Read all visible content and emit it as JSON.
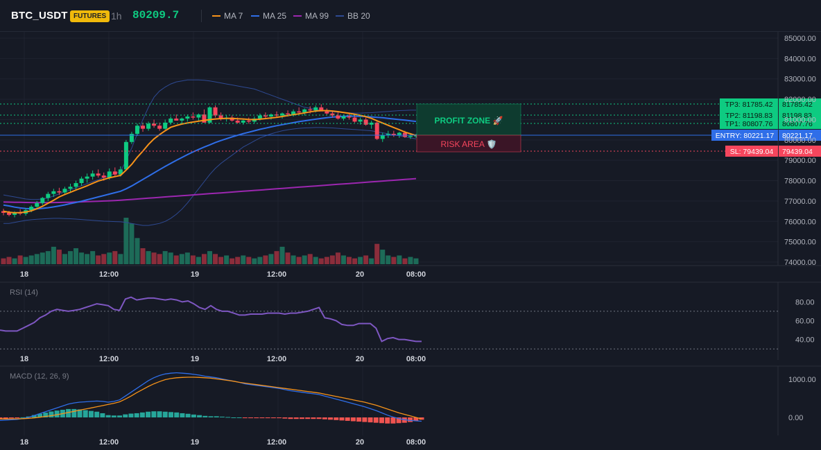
{
  "header": {
    "symbol": "BTC_USDT",
    "badge": "FUTURES",
    "timeframe": "1h",
    "price": "80209.7",
    "legend": [
      {
        "label": "MA 7",
        "color": "#f7931a"
      },
      {
        "label": "MA 25",
        "color": "#2f6ee8"
      },
      {
        "label": "MA 99",
        "color": "#9c27b0"
      },
      {
        "label": "BB 20",
        "color": "#2e4a93"
      }
    ]
  },
  "time_labels": [
    "18",
    "12:00",
    "19",
    "12:00",
    "20",
    "08:00"
  ],
  "price_levels": {
    "tp3": "TP3: 81785.42",
    "tp3_axis": "81785.42",
    "tp2": "TP2: 81198.83",
    "tp2_axis": "81198.83",
    "tp1": "TP1: 80807.76",
    "tp1_axis": "80807.76",
    "entry": "ENTRY: 80221.17",
    "entry_axis": "80221.17",
    "sl": "SL: 79439.04",
    "sl_axis": "79439.04"
  },
  "zones": {
    "profit": "PROFIT ZONE 🚀",
    "risk": "RISK AREA 🛡️"
  },
  "panes": {
    "rsi_title": "RSI (14)",
    "macd_title": "MACD (12, 26, 9)"
  },
  "colors": {
    "up": "#0ecb81",
    "down": "#f6465d",
    "ma7": "#f7931a",
    "ma25": "#2f6ee8",
    "ma99": "#9c27b0",
    "bb": "#2e4a93",
    "rsi": "#7e57c2",
    "macd": "#2f6ee8",
    "signal": "#f7931a",
    "hist_up": "#26a69a",
    "hist_down": "#ef5350"
  },
  "chart_data": [
    {
      "type": "candlestick",
      "yticks": [
        "85000.00",
        "84000.00",
        "83000.00",
        "82000.00",
        "81000.00",
        "80000.00",
        "79000.00",
        "78000.00",
        "77000.00",
        "76000.00",
        "75000.00",
        "74000.00"
      ],
      "ylim": [
        74000,
        85000
      ],
      "x_tick_labels": [
        "18",
        "12:00",
        "19",
        "12:00",
        "20",
        "08:00"
      ],
      "candles": [
        [
          76500,
          76620,
          76300,
          76420
        ],
        [
          76420,
          76520,
          76250,
          76320
        ],
        [
          76320,
          76500,
          76200,
          76430
        ],
        [
          76430,
          76600,
          76300,
          76380
        ],
        [
          76380,
          76650,
          76280,
          76550
        ],
        [
          76550,
          76800,
          76450,
          76720
        ],
        [
          76720,
          77000,
          76600,
          76900
        ],
        [
          76900,
          77200,
          76800,
          77150
        ],
        [
          77150,
          77450,
          77000,
          77350
        ],
        [
          77350,
          77600,
          77200,
          77480
        ],
        [
          77480,
          77650,
          77300,
          77420
        ],
        [
          77420,
          77700,
          77300,
          77600
        ],
        [
          77600,
          77850,
          77450,
          77700
        ],
        [
          77700,
          78000,
          77550,
          77880
        ],
        [
          77880,
          78200,
          77750,
          78100
        ],
        [
          78100,
          78350,
          77900,
          78200
        ],
        [
          78200,
          78500,
          78050,
          78350
        ],
        [
          78350,
          78550,
          78150,
          78250
        ],
        [
          78250,
          78400,
          78000,
          78150
        ],
        [
          78150,
          78600,
          78050,
          78450
        ],
        [
          78450,
          78650,
          78200,
          78300
        ],
        [
          78300,
          78700,
          78200,
          78550
        ],
        [
          78550,
          80000,
          78500,
          79900
        ],
        [
          79900,
          80400,
          79800,
          80300
        ],
        [
          80300,
          80800,
          80200,
          80700
        ],
        [
          80700,
          80850,
          80400,
          80550
        ],
        [
          80550,
          80900,
          80450,
          80800
        ],
        [
          80800,
          81000,
          80600,
          80700
        ],
        [
          80700,
          80850,
          80450,
          80550
        ],
        [
          80550,
          81000,
          80500,
          80850
        ],
        [
          80850,
          81150,
          80750,
          81050
        ],
        [
          81050,
          81250,
          80950,
          80950
        ],
        [
          80950,
          81100,
          80800,
          81050
        ],
        [
          81050,
          81250,
          80900,
          81150
        ],
        [
          81150,
          81350,
          81000,
          81100
        ],
        [
          81100,
          81300,
          80900,
          81250
        ],
        [
          81250,
          81500,
          80900,
          80850
        ],
        [
          80850,
          81650,
          80800,
          81600
        ],
        [
          81600,
          81700,
          81100,
          81200
        ],
        [
          81200,
          81350,
          80950,
          81050
        ],
        [
          81050,
          81200,
          80900,
          81100
        ],
        [
          81100,
          81200,
          80900,
          80950
        ],
        [
          80950,
          81100,
          80800,
          80850
        ],
        [
          80850,
          81050,
          80750,
          80950
        ],
        [
          80950,
          81100,
          80800,
          80900
        ],
        [
          80900,
          81150,
          80800,
          81050
        ],
        [
          81050,
          81300,
          80950,
          81200
        ],
        [
          81200,
          81350,
          81050,
          81150
        ],
        [
          81150,
          81300,
          81000,
          81250
        ],
        [
          81250,
          81400,
          81100,
          81200
        ],
        [
          81200,
          81350,
          81050,
          81300
        ],
        [
          81300,
          81450,
          81150,
          81250
        ],
        [
          81250,
          81500,
          81150,
          81400
        ],
        [
          81400,
          81600,
          81300,
          81350
        ],
        [
          81350,
          81550,
          81200,
          81500
        ],
        [
          81500,
          81650,
          81300,
          81450
        ],
        [
          81450,
          81700,
          81350,
          81600
        ],
        [
          81600,
          81750,
          81450,
          81400
        ],
        [
          81400,
          81550,
          81250,
          81300
        ],
        [
          81300,
          81450,
          81100,
          81200
        ],
        [
          81200,
          81350,
          81000,
          81050
        ],
        [
          81050,
          81250,
          80950,
          81150
        ],
        [
          81150,
          81300,
          81000,
          81100
        ],
        [
          81100,
          81250,
          80850,
          80900
        ],
        [
          80900,
          81100,
          80750,
          81000
        ],
        [
          81000,
          81100,
          80700,
          80750
        ],
        [
          80750,
          80950,
          80550,
          80850
        ],
        [
          80850,
          80900,
          80000,
          80050
        ],
        [
          80050,
          80350,
          79900,
          80250
        ],
        [
          80250,
          80450,
          80100,
          80300
        ],
        [
          80300,
          80450,
          80150,
          80250
        ],
        [
          80250,
          80400,
          80100,
          80350
        ],
        [
          80350,
          80450,
          80100,
          80150
        ],
        [
          80150,
          80300,
          80050,
          80200
        ],
        [
          80200,
          80300,
          80100,
          80210
        ]
      ],
      "volume": [
        4,
        5,
        4,
        6,
        5,
        6,
        7,
        8,
        9,
        12,
        10,
        7,
        9,
        11,
        8,
        7,
        9,
        6,
        7,
        8,
        9,
        7,
        32,
        28,
        18,
        11,
        9,
        8,
        7,
        9,
        8,
        6,
        7,
        8,
        6,
        5,
        7,
        9,
        7,
        5,
        6,
        4,
        5,
        6,
        5,
        4,
        5,
        6,
        7,
        9,
        12,
        8,
        6,
        5,
        6,
        7,
        5,
        4,
        5,
        6,
        8,
        6,
        5,
        4,
        5,
        6,
        4,
        14,
        10,
        6,
        5,
        6,
        4,
        5,
        4
      ],
      "ma7": [
        76500,
        76450,
        76420,
        76430,
        76460,
        76520,
        76620,
        76740,
        76890,
        77040,
        77200,
        77320,
        77430,
        77540,
        77640,
        77750,
        77870,
        77980,
        78060,
        78140,
        78200,
        78260,
        78520,
        78800,
        79150,
        79450,
        79780,
        80050,
        80260,
        80450,
        80620,
        80710,
        80780,
        80830,
        80880,
        80920,
        80960,
        81000,
        81030,
        81050,
        81060,
        81060,
        81040,
        81030,
        81010,
        81000,
        81020,
        81050,
        81080,
        81110,
        81150,
        81200,
        81240,
        81280,
        81330,
        81380,
        81420,
        81440,
        81440,
        81420,
        81390,
        81350,
        81310,
        81260,
        81210,
        81140,
        81060,
        80940,
        80830,
        80720,
        80610,
        80500,
        80390,
        80300,
        80220
      ],
      "ma25": [
        76800,
        76760,
        76700,
        76660,
        76630,
        76620,
        76620,
        76640,
        76670,
        76710,
        76760,
        76810,
        76870,
        76930,
        76990,
        77060,
        77130,
        77200,
        77270,
        77340,
        77410,
        77480,
        77600,
        77740,
        77900,
        78060,
        78220,
        78380,
        78540,
        78700,
        78850,
        79000,
        79140,
        79280,
        79410,
        79530,
        79650,
        79760,
        79870,
        79970,
        80060,
        80150,
        80230,
        80310,
        80380,
        80450,
        80520,
        80580,
        80640,
        80700,
        80750,
        80800,
        80850,
        80900,
        80940,
        80980,
        81020,
        81060,
        81090,
        81120,
        81140,
        81160,
        81170,
        81170,
        81160,
        81150,
        81130,
        81110,
        81090,
        81060,
        81030,
        81000,
        80970,
        80940,
        80910
      ],
      "ma99": [
        76950,
        76945,
        76940,
        76935,
        76930,
        76925,
        76920,
        76920,
        76920,
        76925,
        76930,
        76935,
        76940,
        76950,
        76960,
        76970,
        76980,
        76990,
        77000,
        77010,
        77025,
        77040,
        77060,
        77080,
        77100,
        77120,
        77140,
        77160,
        77180,
        77200,
        77220,
        77240,
        77260,
        77280,
        77300,
        77320,
        77340,
        77360,
        77380,
        77400,
        77420,
        77440,
        77460,
        77480,
        77500,
        77520,
        77540,
        77560,
        77580,
        77600,
        77620,
        77640,
        77660,
        77680,
        77700,
        77720,
        77740,
        77760,
        77780,
        77800,
        77820,
        77840,
        77860,
        77880,
        77900,
        77920,
        77940,
        77960,
        77980,
        78000,
        78020,
        78040,
        78060,
        78080,
        78100
      ],
      "bb_upper": [
        77300,
        77250,
        77200,
        77150,
        77100,
        77080,
        77080,
        77100,
        77150,
        77250,
        77350,
        77450,
        77550,
        77650,
        77750,
        77850,
        77950,
        78050,
        78150,
        78250,
        78350,
        78450,
        79000,
        79600,
        80300,
        81000,
        81600,
        82100,
        82400,
        82600,
        82750,
        82850,
        82900,
        82950,
        82950,
        82950,
        82930,
        82900,
        82850,
        82800,
        82750,
        82700,
        82650,
        82600,
        82550,
        82500,
        82400,
        82300,
        82200,
        82100,
        82000,
        81900,
        81800,
        81700,
        81600,
        81550,
        81500,
        81450,
        81400,
        81380,
        81360,
        81340,
        81330,
        81320,
        81320,
        81330,
        81340,
        81360,
        81380,
        81400,
        81420,
        81440,
        81450,
        81460,
        81460
      ],
      "bb_lower": [
        75900,
        75900,
        75950,
        76000,
        76050,
        76080,
        76100,
        76120,
        76140,
        76150,
        76150,
        76140,
        76130,
        76110,
        76090,
        76070,
        76050,
        76030,
        76010,
        76000,
        75990,
        75980,
        75950,
        75900,
        75850,
        75800,
        75800,
        75850,
        75900,
        76000,
        76150,
        76350,
        76600,
        76900,
        77250,
        77600,
        77950,
        78300,
        78600,
        78850,
        79050,
        79250,
        79450,
        79650,
        79800,
        79950,
        80100,
        80200,
        80300,
        80380,
        80450,
        80500,
        80540,
        80570,
        80590,
        80600,
        80610,
        80610,
        80600,
        80590,
        80570,
        80550,
        80530,
        80510,
        80490,
        80470,
        80450,
        80400,
        80350,
        80300,
        80250,
        80200,
        80150,
        80100,
        80050
      ]
    },
    {
      "type": "line",
      "title": "RSI (14)",
      "yticks": [
        "80.00",
        "60.00",
        "40.00"
      ],
      "levels": [
        70,
        30
      ],
      "values": [
        50,
        49,
        49,
        49,
        52,
        55,
        58,
        63,
        66,
        70,
        72,
        71,
        70,
        71,
        72,
        74,
        76,
        78,
        77,
        76,
        72,
        71,
        83,
        85,
        82,
        83,
        84,
        84,
        83,
        82,
        83,
        82,
        80,
        81,
        78,
        74,
        72,
        76,
        72,
        70,
        70,
        68,
        66,
        66,
        67,
        67,
        67,
        68,
        68,
        68,
        67,
        68,
        68,
        69,
        70,
        72,
        74,
        63,
        62,
        60,
        56,
        55,
        55,
        57,
        57,
        57,
        52,
        38,
        41,
        42,
        40,
        40,
        39,
        38,
        38
      ]
    },
    {
      "type": "bar",
      "title": "MACD (12, 26, 9)",
      "yticks": [
        "1000.00",
        "0.00"
      ],
      "macd": [
        -80,
        -70,
        -60,
        -50,
        -30,
        0,
        50,
        100,
        150,
        200,
        250,
        300,
        350,
        380,
        400,
        410,
        420,
        430,
        420,
        400,
        420,
        460,
        560,
        660,
        760,
        860,
        960,
        1040,
        1100,
        1140,
        1160,
        1170,
        1160,
        1150,
        1130,
        1110,
        1080,
        1060,
        1040,
        1010,
        980,
        950,
        920,
        880,
        860,
        840,
        820,
        800,
        780,
        760,
        730,
        700,
        680,
        660,
        640,
        620,
        600,
        560,
        520,
        480,
        440,
        400,
        360,
        320,
        280,
        230,
        180,
        120,
        60,
        10,
        -30,
        -60,
        -80,
        -90,
        -100
      ],
      "signal": [
        -40,
        -40,
        -38,
        -36,
        -32,
        -24,
        -12,
        5,
        25,
        45,
        70,
        100,
        130,
        160,
        190,
        220,
        250,
        280,
        310,
        340,
        370,
        410,
        480,
        560,
        650,
        730,
        810,
        880,
        940,
        990,
        1020,
        1040,
        1050,
        1055,
        1055,
        1050,
        1040,
        1030,
        1010,
        990,
        970,
        950,
        920,
        900,
        880,
        860,
        840,
        820,
        800,
        780,
        760,
        740,
        720,
        700,
        680,
        660,
        640,
        610,
        580,
        550,
        520,
        490,
        460,
        430,
        400,
        360,
        320,
        270,
        220,
        170,
        120,
        80,
        40,
        0,
        -40
      ],
      "histogram": [
        -40,
        -30,
        -22,
        -14,
        2,
        24,
        62,
        95,
        125,
        155,
        180,
        200,
        220,
        220,
        210,
        190,
        170,
        150,
        110,
        60,
        50,
        50,
        80,
        100,
        110,
        130,
        150,
        160,
        160,
        150,
        140,
        130,
        110,
        95,
        75,
        60,
        40,
        30,
        30,
        20,
        10,
        0,
        0,
        -20,
        -20,
        -20,
        -20,
        -20,
        -20,
        -20,
        -30,
        -40,
        -40,
        -40,
        -40,
        -40,
        -40,
        -50,
        -60,
        -70,
        -80,
        -90,
        -100,
        -110,
        -120,
        -130,
        -140,
        -150,
        -160,
        -160,
        -150,
        -140,
        -120,
        -90,
        -60
      ]
    }
  ]
}
